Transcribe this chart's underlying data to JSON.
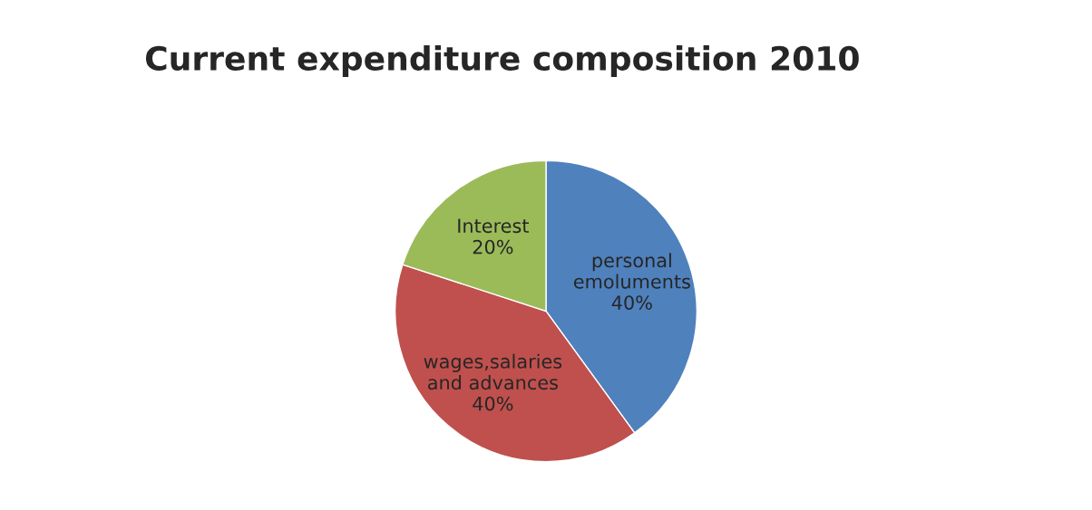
{
  "chart_data": {
    "type": "pie",
    "title": "Current expenditure composition 2010",
    "categories": [
      "personal emoluments",
      "wages,salaries and advances",
      "Interest"
    ],
    "values": [
      40,
      40,
      20
    ],
    "colors": [
      "#4f81bd",
      "#c0504d",
      "#9bbb59"
    ],
    "value_labels": [
      "40%",
      "40%",
      "20%"
    ]
  }
}
